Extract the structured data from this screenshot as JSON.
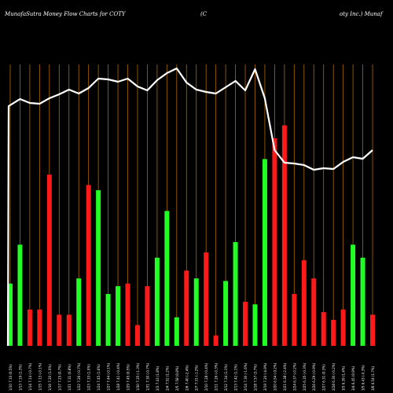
{
  "header": {
    "left_title": "MunafaSutra  Money Flow  Charts for COTY",
    "mid_title": "(C",
    "right_title": "oty Inc.) Munaf"
  },
  "colors": {
    "background": "#000000",
    "up": "#22ff22",
    "down": "#ff1a1a",
    "grid": "#b06a00",
    "line": "#ffffff",
    "text": "#ffffff"
  },
  "chart_data": {
    "type": "bar",
    "grid": "vertical",
    "categories": [
      "1/10 7.10 (0.5%)",
      "1/13 7.19 (1.3%)",
      "1/14 7.14 (-0.7%)",
      "1/15 7.13 (-0.1%)",
      "1/16 7.20 (1.0%)",
      "1/17 7.25 (0.7%)",
      "1/21 7.31 (0.8%)",
      "1/22 7.26 (-0.7%)",
      "1/23 7.33 (1.0%)",
      "1/24 7.45 (1.6%)",
      "1/27 7.44 (-0.1%)",
      "1/28 7.41 (-0.4%)",
      "1/29 7.45 (0.5%)",
      "1/30 7.35 (-1.3%)",
      "1/31 7.30 (-0.7%)",
      "2/3 7.43 (1.8%)",
      "2/4 7.52 (1.2%)",
      "2/5 7.58 (0.8%)",
      "2/6 7.40 (-2.4%)",
      "2/7 7.31 (-1.2%)",
      "2/10 7.28 (-0.4%)",
      "2/11 7.26 (-0.3%)",
      "2/12 7.34 (1.1%)",
      "2/13 7.42 (1.1%)",
      "2/14 7.30 (-1.6%)",
      "2/18 7.57 (3.7%)",
      "2/19 7.20 (-4.9%)",
      "2/20 6.54 (-9.2%)",
      "2/21 6.38 (-2.4%)",
      "2/24 6.37 (-0.2%)",
      "2/25 6.35 (-0.3%)",
      "2/26 6.29 (-0.9%)",
      "2/27 6.31 (0.3%)",
      "2/28 6.30 (-0.2%)",
      "3/3 6.39 (1.4%)",
      "3/4 6.45 (0.9%)",
      "3/5 6.43 (-0.3%)",
      "3/6 6.54 (1.7%)"
    ],
    "series": [
      {
        "values": [
          24,
          39,
          14,
          14,
          66,
          12,
          12,
          26,
          62,
          60,
          20,
          23,
          24,
          8,
          23,
          34,
          52,
          11,
          29,
          26,
          36,
          4,
          25,
          40,
          17,
          16,
          72,
          80,
          85,
          20,
          33,
          26,
          13,
          10,
          14,
          39,
          34,
          12
        ],
        "direction": [
          "up",
          "up",
          "down",
          "down",
          "down",
          "down",
          "down",
          "up",
          "down",
          "up",
          "up",
          "up",
          "down",
          "down",
          "down",
          "up",
          "up",
          "up",
          "down",
          "up",
          "down",
          "down",
          "up",
          "up",
          "down",
          "up",
          "up",
          "down",
          "down",
          "down",
          "down",
          "down",
          "down",
          "down",
          "down",
          "up",
          "up",
          "down"
        ]
      }
    ],
    "line_values": [
      7.1,
      7.19,
      7.14,
      7.13,
      7.2,
      7.25,
      7.31,
      7.26,
      7.33,
      7.45,
      7.44,
      7.41,
      7.45,
      7.35,
      7.3,
      7.43,
      7.52,
      7.58,
      7.4,
      7.31,
      7.28,
      7.26,
      7.34,
      7.42,
      7.3,
      7.57,
      7.2,
      6.54,
      6.38,
      6.37,
      6.35,
      6.29,
      6.31,
      6.3,
      6.39,
      6.45,
      6.43,
      6.54
    ],
    "ylim": [
      0,
      100
    ]
  }
}
